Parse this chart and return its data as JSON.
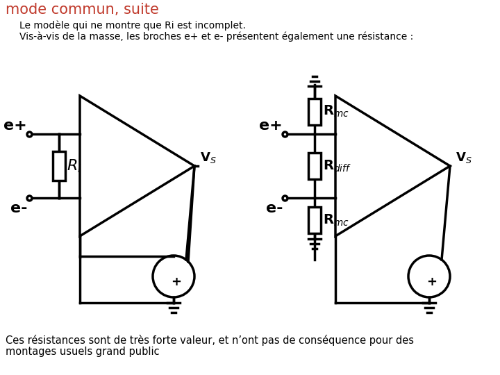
{
  "title": "mode commun, suite",
  "title_color": "#c0392b",
  "subtitle1": "Le modèle qui ne montre que Ri est incomplet.",
  "subtitle2": "Vis-à-vis de la masse, les broches e+ et e- présentent également une résistance :",
  "footer1": "Ces résistances sont de très forte valeur, et n’ont pas de conséquence pour des",
  "footer2": "montages usuels grand public",
  "bg_color": "#ffffff",
  "text_color": "#000000"
}
